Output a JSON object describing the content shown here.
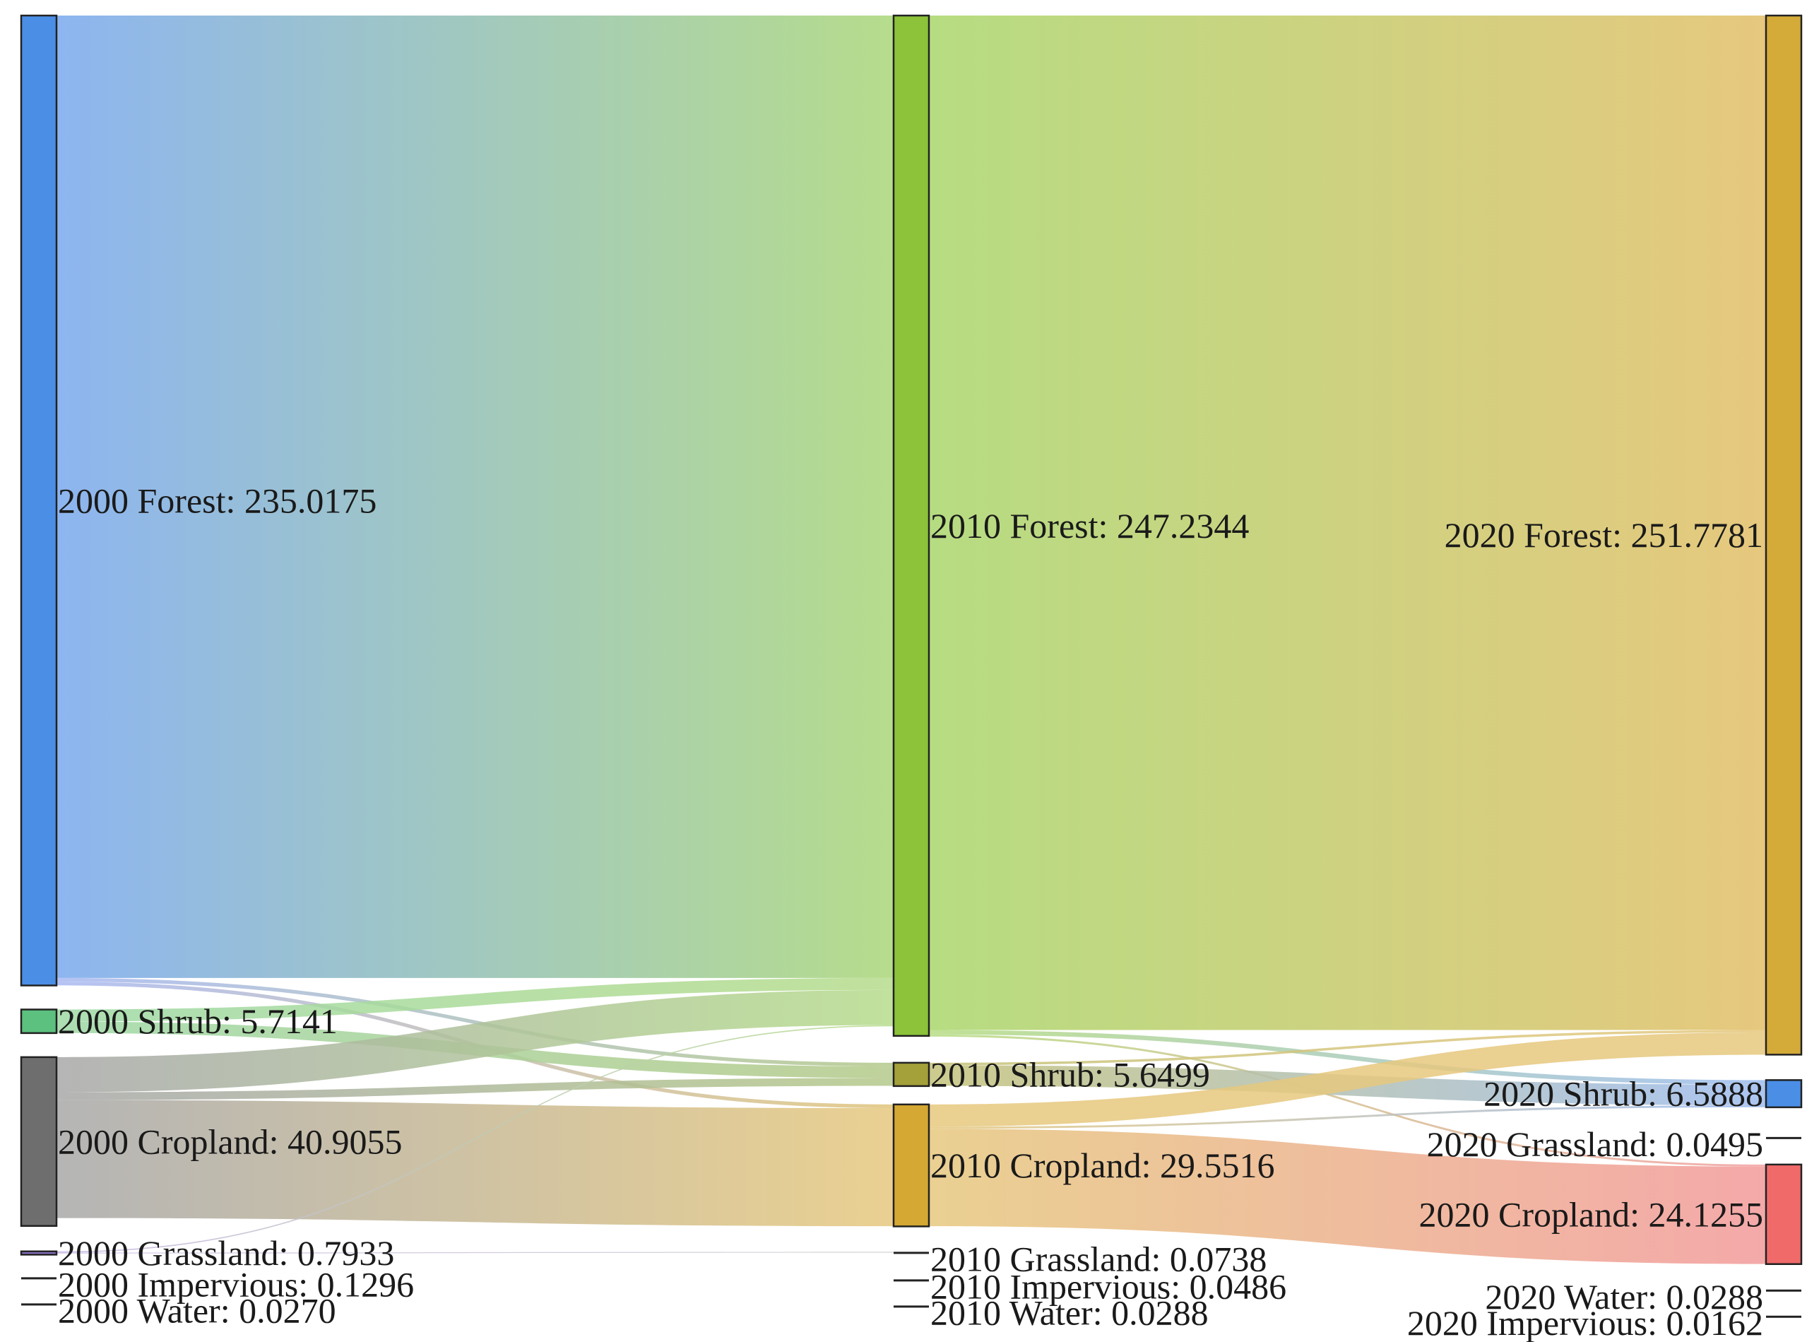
{
  "chart_data": {
    "type": "sankey",
    "units_note": "",
    "columns": [
      {
        "year": "2000",
        "nodes": [
          {
            "id": "2000-forest",
            "label": "2000 Forest: 235.0175",
            "value": 235.0175,
            "color": "#4a8ee6"
          },
          {
            "id": "2000-shrub",
            "label": "2000 Shrub: 5.7141",
            "value": 5.7141,
            "color": "#5cc07e"
          },
          {
            "id": "2000-cropland",
            "label": "2000 Cropland: 40.9055",
            "value": 40.9055,
            "color": "#6e6e6e"
          },
          {
            "id": "2000-grassland",
            "label": "2000 Grassland: 0.7933",
            "value": 0.7933,
            "color": "#8a6fc4"
          },
          {
            "id": "2000-impervious",
            "label": "2000 Impervious: 0.1296",
            "value": 0.1296,
            "color": "#555555"
          },
          {
            "id": "2000-water",
            "label": "2000 Water: 0.0270",
            "value": 0.027,
            "color": "#555555"
          }
        ]
      },
      {
        "year": "2010",
        "nodes": [
          {
            "id": "2010-forest",
            "label": "2010 Forest: 247.2344",
            "value": 247.2344,
            "color": "#8cc33a"
          },
          {
            "id": "2010-shrub",
            "label": "2010 Shrub: 5.6499",
            "value": 5.6499,
            "color": "#a4a03a"
          },
          {
            "id": "2010-cropland",
            "label": "2010 Cropland: 29.5516",
            "value": 29.5516,
            "color": "#d4a832"
          },
          {
            "id": "2010-grassland",
            "label": "2010 Grassland: 0.0738",
            "value": 0.0738,
            "color": "#555555"
          },
          {
            "id": "2010-impervious",
            "label": "2010 Impervious: 0.0486",
            "value": 0.0486,
            "color": "#555555"
          },
          {
            "id": "2010-water",
            "label": "2010 Water: 0.0288",
            "value": 0.0288,
            "color": "#555555"
          }
        ]
      },
      {
        "year": "2020",
        "nodes": [
          {
            "id": "2020-forest",
            "label": "2020 Forest: 251.7781",
            "value": 251.7781,
            "color": "#d4aa38"
          },
          {
            "id": "2020-shrub",
            "label": "2020 Shrub: 6.5888",
            "value": 6.5888,
            "color": "#4a8ee6"
          },
          {
            "id": "2020-grassland",
            "label": "2020 Grassland: 0.0495",
            "value": 0.0495,
            "color": "#555555"
          },
          {
            "id": "2020-cropland",
            "label": "2020 Cropland: 24.1255",
            "value": 24.1255,
            "color": "#f06a6a"
          },
          {
            "id": "2020-water",
            "label": "2020 Water: 0.0288",
            "value": 0.0288,
            "color": "#555555"
          },
          {
            "id": "2020-impervious",
            "label": "2020 Impervious: 0.0162",
            "value": 0.0162,
            "color": "#555555"
          }
        ]
      }
    ],
    "links": [
      {
        "source": "2000-forest",
        "target": "2010-forest",
        "value": 233.2,
        "gradient": [
          "#8db5f0",
          "#b6dc8c"
        ]
      },
      {
        "source": "2000-forest",
        "target": "2010-shrub",
        "value": 0.9,
        "gradient": [
          "#a8b8f2",
          "#b4c98a"
        ]
      },
      {
        "source": "2000-forest",
        "target": "2010-cropland",
        "value": 0.9,
        "gradient": [
          "#a8b8f2",
          "#e0c47a"
        ]
      },
      {
        "source": "2000-shrub",
        "target": "2010-forest",
        "value": 2.9,
        "gradient": [
          "#9ed9a5",
          "#b6dc8c"
        ]
      },
      {
        "source": "2000-shrub",
        "target": "2010-shrub",
        "value": 2.8,
        "gradient": [
          "#9ed9a5",
          "#b4c98a"
        ]
      },
      {
        "source": "2000-cropland",
        "target": "2010-forest",
        "value": 8.5,
        "gradient": [
          "#a8a8a8",
          "#b6dc8c"
        ]
      },
      {
        "source": "2000-cropland",
        "target": "2010-shrub",
        "value": 1.9,
        "gradient": [
          "#a8a8a8",
          "#b4c98a"
        ]
      },
      {
        "source": "2000-cropland",
        "target": "2010-cropland",
        "value": 28.6,
        "gradient": [
          "#a8a8a8",
          "#e6c87e"
        ]
      },
      {
        "source": "2000-grassland",
        "target": "2010-forest",
        "value": 0.3,
        "gradient": [
          "#c9b8e6",
          "#b6dc8c"
        ]
      },
      {
        "source": "2000-grassland",
        "target": "2010-grassland",
        "value": 0.07,
        "gradient": [
          "#c9b8e6",
          "#cccccc"
        ]
      },
      {
        "source": "2010-forest",
        "target": "2020-forest",
        "value": 245.8,
        "gradient": [
          "#b6dc82",
          "#e6c87e"
        ]
      },
      {
        "source": "2010-forest",
        "target": "2020-shrub",
        "value": 1.1,
        "gradient": [
          "#b6dc82",
          "#9dbcef"
        ]
      },
      {
        "source": "2010-forest",
        "target": "2020-cropland",
        "value": 0.5,
        "gradient": [
          "#b6dc82",
          "#f2a0a0"
        ]
      },
      {
        "source": "2010-shrub",
        "target": "2020-forest",
        "value": 0.6,
        "gradient": [
          "#c4c27a",
          "#e6c87e"
        ]
      },
      {
        "source": "2010-shrub",
        "target": "2020-shrub",
        "value": 5.0,
        "gradient": [
          "#c4c27a",
          "#9dbcef"
        ]
      },
      {
        "source": "2010-cropland",
        "target": "2020-forest",
        "value": 5.4,
        "gradient": [
          "#e6c87e",
          "#e6c87e"
        ]
      },
      {
        "source": "2010-cropland",
        "target": "2020-shrub",
        "value": 0.5,
        "gradient": [
          "#e6c87e",
          "#9dbcef"
        ]
      },
      {
        "source": "2010-cropland",
        "target": "2020-cropland",
        "value": 23.6,
        "gradient": [
          "#e6c87e",
          "#f29a9a"
        ]
      }
    ]
  }
}
